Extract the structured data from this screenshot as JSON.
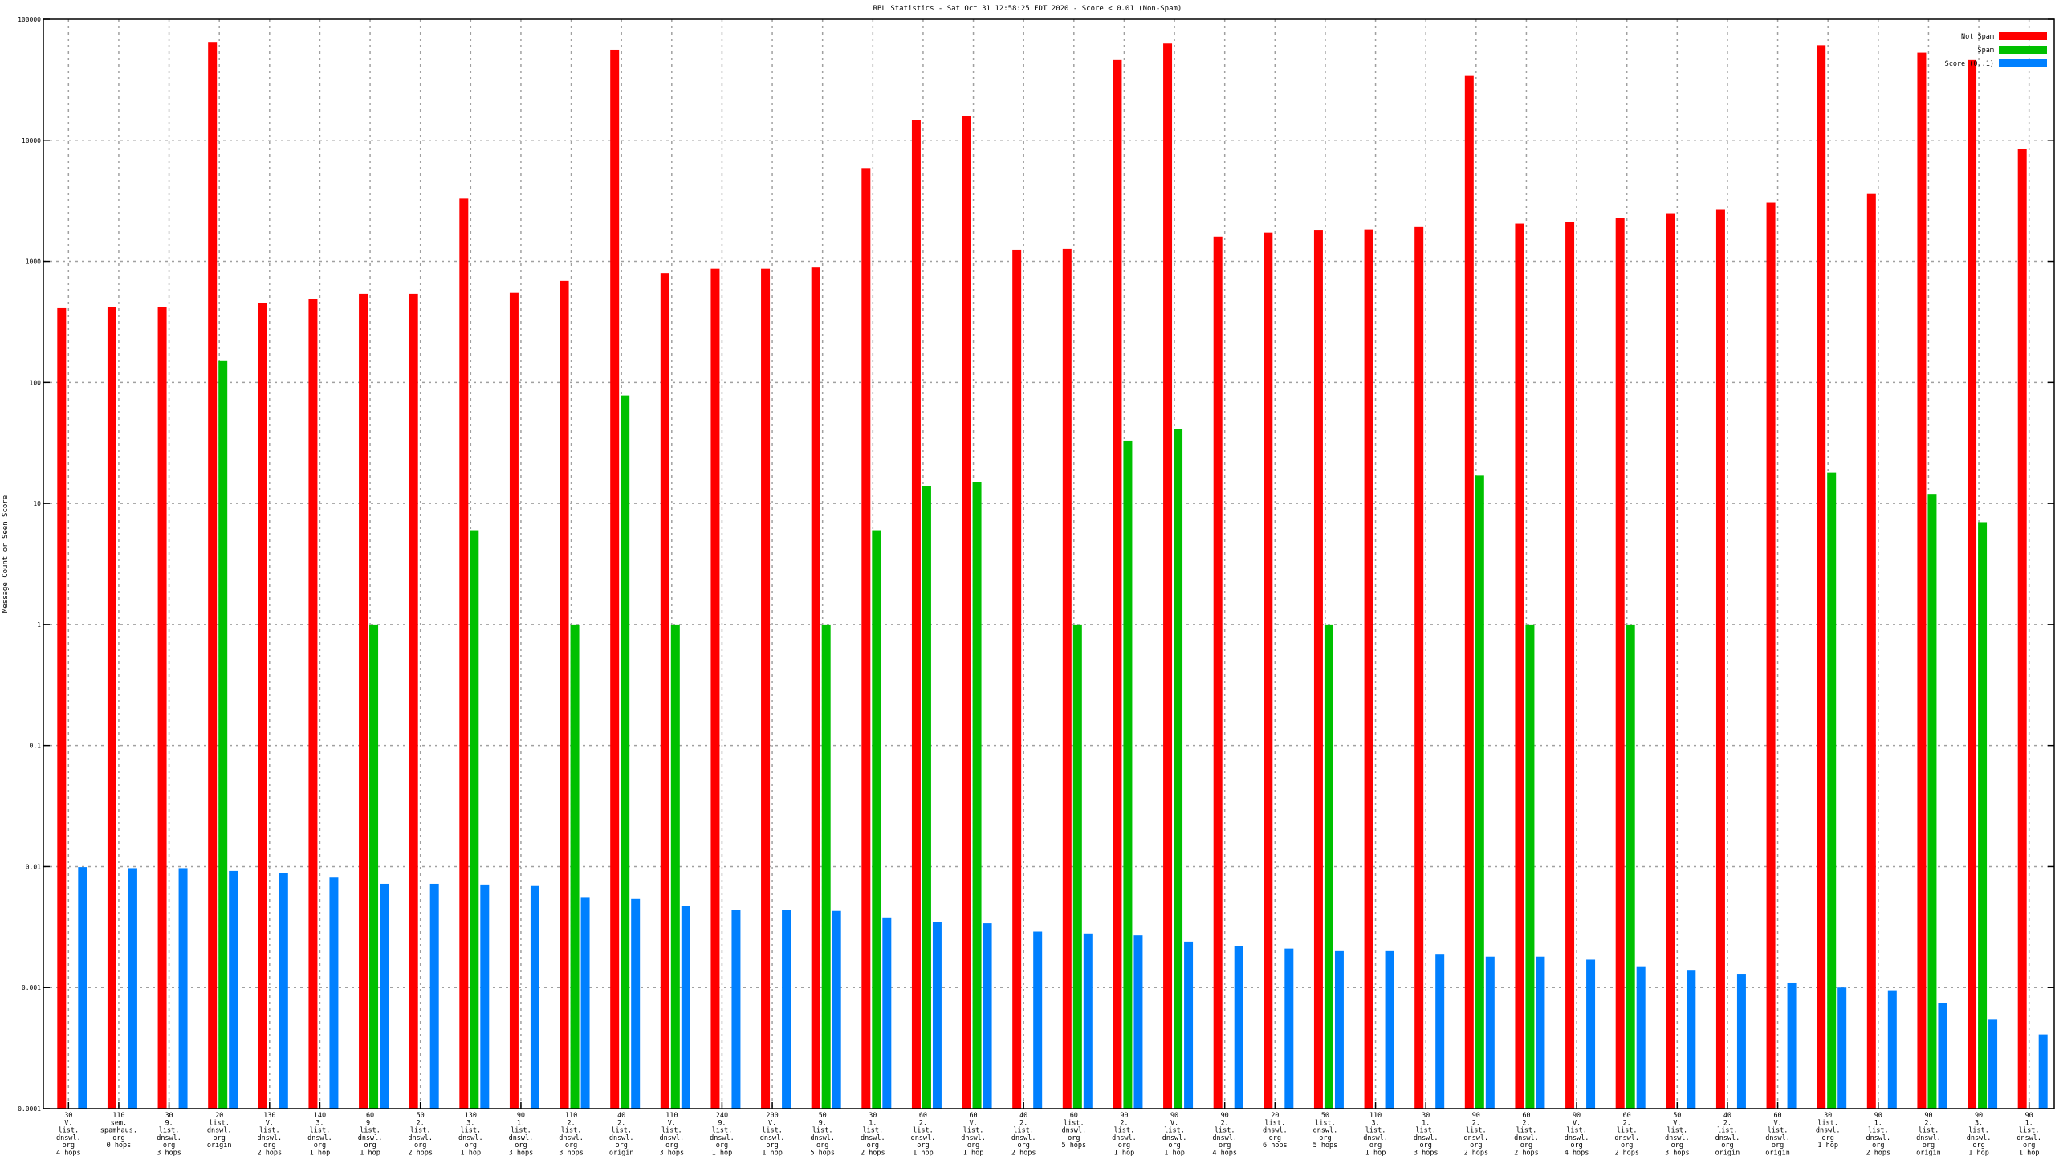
{
  "chart_data": {
    "type": "bar",
    "title": "RBL Statistics - Sat Oct 31 12:58:25 EDT 2020 - Score < 0.01 (Non-Spam)",
    "ylabel": "Message Count or Seen Score",
    "xlabel": "",
    "yscale": "log",
    "ylim": [
      0.0001,
      100000
    ],
    "ytick_labels": [
      "0.0001",
      "0.001",
      "0.01",
      "0.1",
      "1",
      "10",
      "100",
      "1000",
      "10000",
      "100000"
    ],
    "grid": true,
    "legend_position": "top-right",
    "categories": [
      "30\nV.\nlist.\ndnswl.\norg\n4 hops",
      "110\nsem.\nspamhaus.\norg\n0 hops",
      "30\n9.\nlist.\ndnswl.\norg\n3 hops",
      "20\nlist.\ndnswl.\norg\norigin",
      "130\nV.\nlist.\ndnswl.\norg\n2 hops",
      "140\n3.\nlist.\ndnswl.\norg\n1 hop",
      "60\n9.\nlist.\ndnswl.\norg\n1 hop",
      "50\n2.\nlist.\ndnswl.\norg\n2 hops",
      "130\n3.\nlist.\ndnswl.\norg\n1 hop",
      "90\n1.\nlist.\ndnswl.\norg\n3 hops",
      "110\n2.\nlist.\ndnswl.\norg\n3 hops",
      "40\n2.\nlist.\ndnswl.\norg\norigin",
      "110\nV.\nlist.\ndnswl.\norg\n3 hops",
      "240\n9.\nlist.\ndnswl.\norg\n1 hop",
      "200\nV.\nlist.\ndnswl.\norg\n1 hop",
      "50\n9.\nlist.\ndnswl.\norg\n5 hops",
      "30\n1.\nlist.\ndnswl.\norg\n2 hops",
      "60\n2.\nlist.\ndnswl.\norg\n1 hop",
      "60\nV.\nlist.\ndnswl.\norg\n1 hop",
      "40\n2.\nlist.\ndnswl.\norg\n2 hops",
      "60\nlist.\ndnswl.\norg\n5 hops",
      "90\n2.\nlist.\ndnswl.\norg\n1 hop",
      "90\nV.\nlist.\ndnswl.\norg\n1 hop",
      "90\n2.\nlist.\ndnswl.\norg\n4 hops",
      "20\nlist.\ndnswl.\norg\n6 hops",
      "50\nlist.\ndnswl.\norg\n5 hops",
      "110\n3.\nlist.\ndnswl.\norg\n1 hop",
      "30\n1.\nlist.\ndnswl.\norg\n3 hops",
      "90\n2.\nlist.\ndnswl.\norg\n2 hops",
      "60\n2.\nlist.\ndnswl.\norg\n2 hops",
      "90\nV.\nlist.\ndnswl.\norg\n4 hops",
      "60\n2.\nlist.\ndnswl.\norg\n2 hops",
      "50\nV.\nlist.\ndnswl.\norg\n3 hops",
      "40\n2.\nlist.\ndnswl.\norg\norigin",
      "60\nV.\nlist.\ndnswl.\norg\norigin",
      "30\nlist.\ndnswl.\norg\n1 hop",
      "90\n1.\nlist.\ndnswl.\norg\n2 hops",
      "90\n2.\nlist.\ndnswl.\norg\norigin",
      "90\n3.\nlist.\ndnswl.\norg\n1 hop",
      "90\n1.\nlist.\ndnswl.\norg\n1 hop"
    ],
    "series": [
      {
        "name": "Not Spam",
        "color": "#ff0000",
        "values": [
          410,
          420,
          420,
          65000,
          450,
          490,
          540,
          540,
          3300,
          550,
          690,
          56000,
          800,
          870,
          870,
          890,
          5900,
          14800,
          16000,
          1250,
          1270,
          46000,
          63000,
          1600,
          1730,
          1800,
          1840,
          1920,
          34000,
          2050,
          2100,
          2300,
          2500,
          2700,
          3050,
          61000,
          3600,
          53000,
          46000,
          8500
        ]
      },
      {
        "name": "Spam",
        "color": "#00c000",
        "values": [
          null,
          null,
          null,
          150,
          null,
          null,
          1,
          null,
          6,
          null,
          1,
          78,
          1,
          null,
          null,
          1,
          6,
          14,
          15,
          null,
          1,
          33,
          41,
          null,
          null,
          1,
          null,
          null,
          17,
          1,
          null,
          1,
          null,
          null,
          null,
          18,
          null,
          12,
          7,
          null
        ]
      },
      {
        "name": "Score (0..1)",
        "color": "#0080ff",
        "values": [
          0.0099,
          0.0097,
          0.0097,
          0.0092,
          0.0089,
          0.0081,
          0.0072,
          0.0072,
          0.0071,
          0.0069,
          0.0056,
          0.0054,
          0.0047,
          0.0044,
          0.0044,
          0.0043,
          0.0038,
          0.0035,
          0.0034,
          0.0029,
          0.0028,
          0.0027,
          0.0024,
          0.0022,
          0.0021,
          0.002,
          0.002,
          0.0019,
          0.0018,
          0.0018,
          0.0017,
          0.0015,
          0.0014,
          0.0013,
          0.0011,
          0.001,
          0.00095,
          0.00075,
          0.00055,
          0.00041
        ]
      }
    ]
  }
}
